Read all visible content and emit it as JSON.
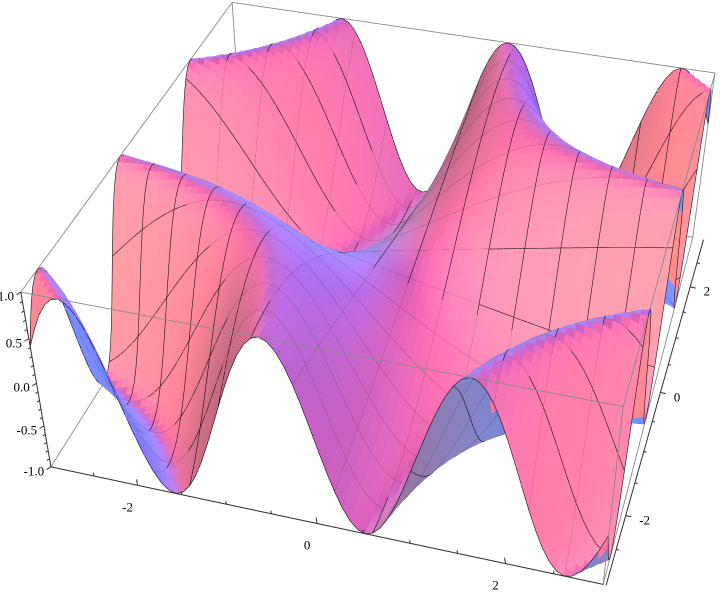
{
  "page": {
    "background": "#ffffff"
  },
  "chart_data": {
    "type": "surface",
    "subtype": "3d-surface-plot",
    "title": "",
    "xlabel": "",
    "ylabel": "",
    "zlabel": "",
    "function": "z = sin(x*y)",
    "x_axis": {
      "range": [
        -3,
        3
      ],
      "major_ticks": [
        -2,
        0,
        2
      ],
      "major_tick_labels": [
        "-2",
        "0",
        "2"
      ],
      "minor_tick_step": 0.5
    },
    "y_axis": {
      "range": [
        -3,
        3
      ],
      "major_ticks": [
        -2,
        0,
        2
      ],
      "major_tick_labels": [
        "-2",
        "0",
        "2"
      ],
      "minor_tick_step": 0.5
    },
    "z_axis": {
      "range": [
        -1,
        1
      ],
      "major_ticks": [
        1,
        0.5,
        0,
        -0.5,
        -1
      ],
      "major_tick_labels": [
        "1.0",
        "0.5",
        "0.0",
        "-0.5",
        "-1.0"
      ],
      "minor_tick_step": 0.1
    },
    "grid": {
      "x": [
        -3,
        -2,
        -1,
        0,
        1,
        2,
        3
      ],
      "y": [
        -3,
        -2,
        -1,
        0,
        1,
        2,
        3
      ],
      "z_values": [
        [
          0.412,
          -0.279,
          0.141,
          0,
          -0.141,
          0.279,
          -0.412
        ],
        [
          -0.279,
          -0.757,
          0.909,
          0,
          -0.909,
          0.757,
          0.279
        ],
        [
          0.141,
          0.909,
          0.841,
          0,
          -0.841,
          -0.909,
          -0.141
        ],
        [
          0,
          0,
          0,
          0,
          0,
          0,
          0
        ],
        [
          -0.141,
          -0.909,
          -0.841,
          0,
          0.841,
          0.909,
          0.141
        ],
        [
          0.279,
          0.757,
          -0.909,
          0,
          0.909,
          -0.757,
          -0.279
        ],
        [
          -0.412,
          0.279,
          -0.141,
          0,
          0.141,
          -0.279,
          0.412
        ]
      ]
    },
    "mesh": {
      "lines_per_axis": 14,
      "spacing": 0.4,
      "color": "#000000"
    },
    "style": {
      "bounding_box_edge_color": "#8a8a8a",
      "axis_color": "#303030",
      "tick_label_color": "#000000",
      "background": "#ffffff",
      "surface_palette": {
        "plateau_purple": "#b571cb",
        "front_magenta": "#d96fc4",
        "slope_orange": "#f6bb7f",
        "crest_cyan": "#aadcf8",
        "flat_light_blue": "#a9c3f2",
        "shadow_maroon": "#7c2a5a",
        "underside_salmon": "#ef8a7e"
      }
    },
    "legend": null,
    "view": {
      "projection": "perspective",
      "viewpoint_like": "default {1.3,-2.4,2}, z up"
    }
  }
}
